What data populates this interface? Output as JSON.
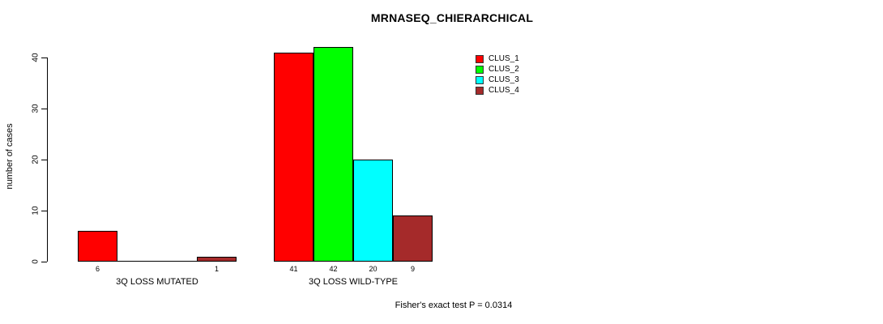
{
  "chart_data": {
    "type": "bar",
    "title": "MRNASEQ_CHIERARCHICAL",
    "ylabel": "number of cases",
    "xlabel": "",
    "ylim": [
      0,
      40
    ],
    "yticks": [
      0,
      10,
      20,
      30,
      40
    ],
    "grid": false,
    "legend_position": "top-right",
    "categories": [
      "3Q LOSS MUTATED",
      "3Q LOSS WILD-TYPE"
    ],
    "series": [
      {
        "name": "CLUS_1",
        "color": "#ff0000",
        "values": [
          6,
          41
        ]
      },
      {
        "name": "CLUS_2",
        "color": "#00ff00",
        "values": [
          0,
          42
        ]
      },
      {
        "name": "CLUS_3",
        "color": "#00ffff",
        "values": [
          0,
          20
        ]
      },
      {
        "name": "CLUS_4",
        "color": "#a52a2a",
        "values": [
          1,
          9
        ]
      }
    ],
    "bar_value_labels_shown": [
      [
        6,
        1
      ],
      [
        41,
        42,
        20,
        9
      ]
    ],
    "annotation": "Fisher's exact test P = 0.0314",
    "axis_color": "#000000",
    "bar_border_color": "#000000",
    "background_color": "#ffffff"
  }
}
